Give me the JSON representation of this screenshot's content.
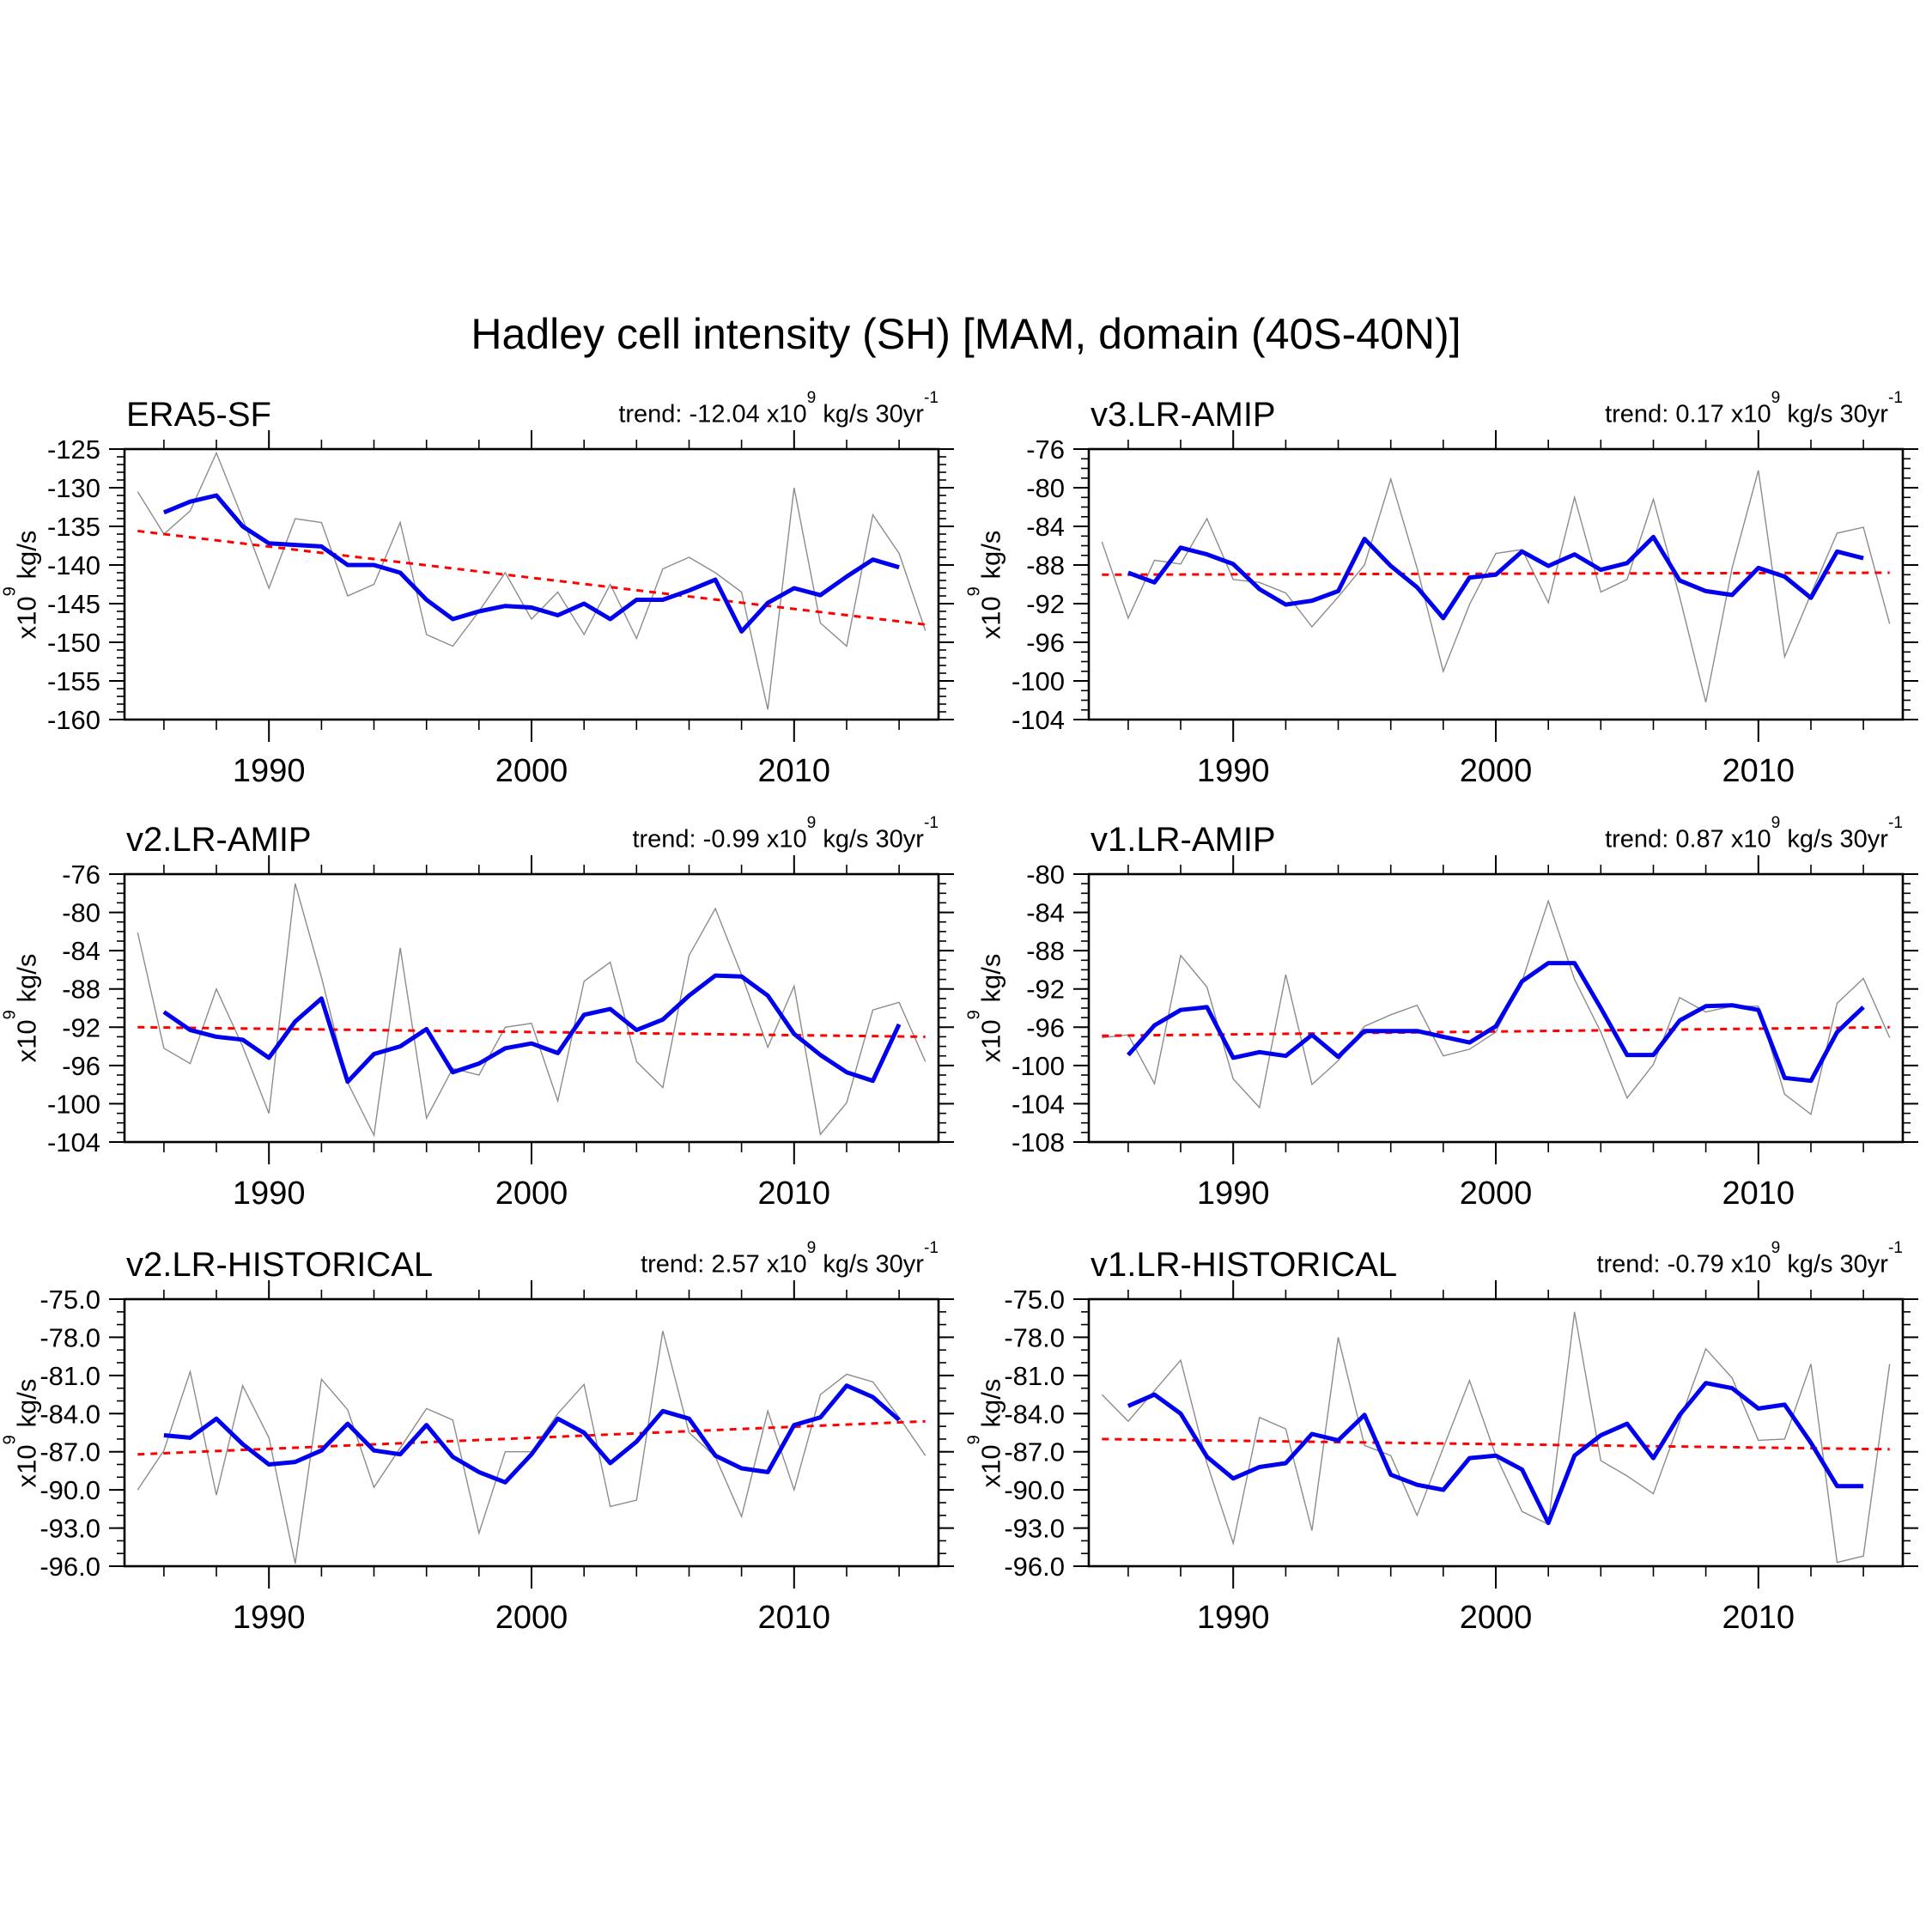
{
  "labels": {
    "trend_prefix": "trend:",
    "x10": "x10",
    "sup9": "9",
    "unit_mid": "kg/s 30yr",
    "sup_minus1": "-1",
    "ylabel_units": "kg/s"
  },
  "chart_data": {
    "type": "line",
    "suptitle": "Hadley cell intensity (SH) [MAM, domain (40S-40N)]",
    "grid": false,
    "legend": "none",
    "x": {
      "xlim": [
        1984.5,
        2015.5
      ],
      "major_ticks": [
        1990,
        2000,
        2010
      ],
      "tick_labels": [
        "1990",
        "2000",
        "2010"
      ],
      "minor_tick_step": 2,
      "years": [
        1985,
        1986,
        1987,
        1988,
        1989,
        1990,
        1991,
        1992,
        1993,
        1994,
        1995,
        1996,
        1997,
        1998,
        1999,
        2000,
        2001,
        2002,
        2003,
        2004,
        2005,
        2006,
        2007,
        2008,
        2009,
        2010,
        2011,
        2012,
        2013,
        2014,
        2015
      ],
      "smooth_years": [
        1986,
        1987,
        1988,
        1989,
        1990,
        1991,
        1992,
        1993,
        1994,
        1995,
        1996,
        1997,
        1998,
        1999,
        2000,
        2001,
        2002,
        2003,
        2004,
        2005,
        2006,
        2007,
        2008,
        2009,
        2010,
        2011,
        2012,
        2013,
        2014
      ]
    },
    "series_info": {
      "annual": {
        "color": "#8c8c8c",
        "desc": "annual value"
      },
      "smoothed": {
        "color": "#0000ee",
        "desc": "5-year running mean"
      },
      "trend": {
        "color": "#ff0000",
        "desc": "linear trend (dashed)"
      }
    },
    "panels": [
      {
        "title": "ERA5-SF",
        "trend_value": "-12.04",
        "ylim": [
          -160,
          -125
        ],
        "ytick_labels": [
          "-125",
          "-130",
          "-135",
          "-140",
          "-145",
          "-150",
          "-155",
          "-160"
        ],
        "yminor_step": 1,
        "trend_line": [
          -135.6,
          -147.7
        ],
        "annual": [
          -130.5,
          -136,
          -133,
          -125.5,
          -134,
          -143,
          -134,
          -134.5,
          -144,
          -142.5,
          -134.5,
          -149,
          -150.5,
          -146,
          -141,
          -147,
          -143.5,
          -149,
          -142.5,
          -149.5,
          -140.5,
          -139,
          -141,
          -143.5,
          -158.7,
          -130,
          -147.5,
          -150.5,
          -133.5,
          -138.5,
          -148.5
        ],
        "smoothed": [
          -133.2,
          -131.8,
          -131,
          -135,
          -137.2,
          -137.4,
          -137.6,
          -140,
          -140,
          -141,
          -144.5,
          -147,
          -146,
          -145.3,
          -145.5,
          -146.5,
          -145,
          -147,
          -144.5,
          -144.5,
          -143.3,
          -141.9,
          -148.6,
          -144.9,
          -143,
          -143.9,
          -141.5,
          -139.3,
          -140.3
        ]
      },
      {
        "title": "v3.LR-AMIP",
        "trend_value": "0.17",
        "ylim": [
          -104,
          -76
        ],
        "ytick_labels": [
          "-76",
          "-80",
          "-84",
          "-88",
          "-92",
          "-96",
          "-100",
          "-104"
        ],
        "yminor_step": 1,
        "trend_line": [
          -89.0,
          -88.8
        ],
        "annual": [
          -85.6,
          -93.5,
          -87.5,
          -87.9,
          -83.2,
          -89.5,
          -89.8,
          -90.9,
          -94.4,
          -91.3,
          -88,
          -79.1,
          -88.3,
          -99,
          -92.1,
          -86.8,
          -86.4,
          -91.9,
          -81,
          -90.8,
          -89.5,
          -81.2,
          -91.3,
          -102.2,
          -88.3,
          -78.2,
          -97.5,
          -91,
          -84.7,
          -84.1,
          -94.1
        ],
        "smoothed": [
          -88.8,
          -89.8,
          -86.2,
          -86.9,
          -87.9,
          -90.5,
          -92.1,
          -91.7,
          -90.7,
          -85.3,
          -88.1,
          -90.3,
          -93.5,
          -89.3,
          -89,
          -86.6,
          -88.1,
          -86.9,
          -88.5,
          -87.8,
          -85.1,
          -89.6,
          -90.7,
          -91.1,
          -88.3,
          -89.2,
          -91.4,
          -86.6,
          -87.3
        ]
      },
      {
        "title": "v2.LR-AMIP",
        "trend_value": "-0.99",
        "ylim": [
          -104,
          -76
        ],
        "ytick_labels": [
          "-76",
          "-80",
          "-84",
          "-88",
          "-92",
          "-96",
          "-100",
          "-104"
        ],
        "yminor_step": 1,
        "trend_line": [
          -92.0,
          -93.0
        ],
        "annual": [
          -82.1,
          -94.2,
          -95.8,
          -88,
          -94,
          -101,
          -77,
          -86.8,
          -97.8,
          -103.3,
          -83.7,
          -101.5,
          -96.3,
          -97,
          -92,
          -91.6,
          -99.7,
          -87.2,
          -85.2,
          -95.6,
          -98.3,
          -84.5,
          -79.6,
          -86.5,
          -94.1,
          -87.7,
          -103.2,
          -99.9,
          -90.2,
          -89.4,
          -95.6
        ],
        "smoothed": [
          -90.4,
          -92.3,
          -93,
          -93.3,
          -95.2,
          -91.4,
          -89,
          -97.7,
          -94.8,
          -94,
          -92.2,
          -96.7,
          -95.8,
          -94.2,
          -93.7,
          -94.7,
          -90.7,
          -90.1,
          -92.3,
          -91.2,
          -88.7,
          -86.6,
          -86.7,
          -88.7,
          -92.7,
          -94.9,
          -96.7,
          -97.6,
          -91.7
        ]
      },
      {
        "title": "v1.LR-AMIP",
        "trend_value": "0.87",
        "ylim": [
          -108,
          -80
        ],
        "ytick_labels": [
          "-80",
          "-84",
          "-88",
          "-92",
          "-96",
          "-100",
          "-104",
          "-108"
        ],
        "yminor_step": 1,
        "trend_line": [
          -96.9,
          -96.0
        ],
        "annual": [
          -97.1,
          -96.8,
          -101.9,
          -88.5,
          -91.8,
          -101.4,
          -104.4,
          -90.5,
          -102,
          -99.5,
          -95.9,
          -94.7,
          -93.7,
          -99,
          -98.3,
          -96.5,
          -91.2,
          -82.8,
          -91,
          -96.5,
          -103.4,
          -99.9,
          -92.9,
          -94.4,
          -93.8,
          -93.8,
          -103,
          -105.1,
          -93.5,
          -90.9,
          -97.1
        ],
        "smoothed": [
          -98.9,
          -95.8,
          -94.2,
          -93.9,
          -99.2,
          -98.6,
          -99,
          -96.8,
          -99.1,
          -96.4,
          -96.4,
          -96.4,
          -97,
          -97.6,
          -95.9,
          -91.2,
          -89.3,
          -89.3,
          -94,
          -98.9,
          -98.9,
          -95.3,
          -93.8,
          -93.7,
          -94.2,
          -101.3,
          -101.6,
          -96.5,
          -93.9
        ]
      },
      {
        "title": "v2.LR-HISTORICAL",
        "trend_value": "2.57",
        "ylim": [
          -96,
          -75
        ],
        "ytick_labels": [
          "-75.0",
          "-78.0",
          "-81.0",
          "-84.0",
          "-87.0",
          "-90.0",
          "-93.0",
          "-96.0"
        ],
        "yminor_step": 1,
        "trend_line": [
          -87.2,
          -84.6
        ],
        "annual": [
          -90,
          -86.9,
          -80.7,
          -90.4,
          -81.8,
          -85.9,
          -95.8,
          -81.3,
          -83.7,
          -89.8,
          -86.7,
          -83.6,
          -84.5,
          -93.4,
          -87,
          -87,
          -84,
          -81.7,
          -91.3,
          -90.8,
          -77.5,
          -85.5,
          -87.4,
          -92.1,
          -83.8,
          -90,
          -82.5,
          -80.9,
          -81.5,
          -84.3,
          -87.3
        ],
        "smoothed": [
          -85.7,
          -85.9,
          -84.4,
          -86.4,
          -88,
          -87.8,
          -86.9,
          -84.8,
          -86.9,
          -87.2,
          -84.9,
          -87.4,
          -88.6,
          -89.4,
          -87.2,
          -84.4,
          -85.5,
          -87.9,
          -86.2,
          -83.8,
          -84.4,
          -87.3,
          -88.3,
          -88.6,
          -84.9,
          -84.3,
          -81.8,
          -82.7,
          -84.5
        ]
      },
      {
        "title": "v1.LR-HISTORICAL",
        "trend_value": "-0.79",
        "ylim": [
          -96,
          -75
        ],
        "ytick_labels": [
          "-75.0",
          "-78.0",
          "-81.0",
          "-84.0",
          "-87.0",
          "-90.0",
          "-93.0",
          "-96.0"
        ],
        "yminor_step": 1,
        "trend_line": [
          -86.0,
          -86.8
        ],
        "annual": [
          -82.5,
          -84.6,
          -82.2,
          -79.8,
          -87.9,
          -94.2,
          -84.3,
          -85.2,
          -93.2,
          -78,
          -86.5,
          -87.3,
          -92,
          -86.7,
          -81.4,
          -87.3,
          -91.7,
          -92.7,
          -76,
          -87.7,
          -88.9,
          -90.3,
          -84.6,
          -78.9,
          -81.2,
          -86.1,
          -86,
          -80.1,
          -95.7,
          -95.2,
          -80.1
        ],
        "smoothed": [
          -83.4,
          -82.5,
          -84,
          -87.4,
          -89.1,
          -88.2,
          -87.9,
          -85.6,
          -86.1,
          -84.1,
          -88.8,
          -89.6,
          -90,
          -87.5,
          -87.3,
          -88.4,
          -92.6,
          -87.3,
          -85.7,
          -84.8,
          -87.5,
          -84.1,
          -81.6,
          -82,
          -83.6,
          -83.3,
          -86.3,
          -89.7,
          -89.7
        ]
      }
    ]
  }
}
